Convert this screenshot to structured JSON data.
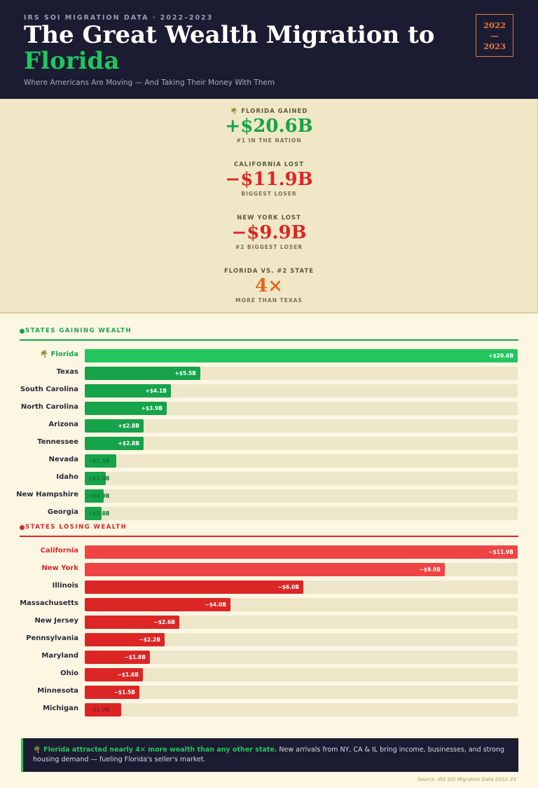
{
  "header": {
    "eyebrow": "IRS SOI MIGRATION DATA · 2022–2023",
    "title_line1": "The Great Wealth Migration to",
    "title_line2": "Florida",
    "subtitle": "Where Americans Are Moving — And Taking Their Money With Them",
    "year_top": "2022",
    "year_dash": "—",
    "year_bottom": "2023"
  },
  "stats": [
    {
      "label": "🌴 FLORIDA GAINED",
      "value": "+$20.6B",
      "sub": "#1 IN THE NATION",
      "tone": "green"
    },
    {
      "label": "CALIFORNIA LOST",
      "value": "−$11.9B",
      "sub": "BIGGEST LOSER",
      "tone": "red"
    },
    {
      "label": "NEW YORK LOST",
      "value": "−$9.9B",
      "sub": "#2 BIGGEST LOSER",
      "tone": "red"
    },
    {
      "label": "FLORIDA VS. #2 STATE",
      "value": "4×",
      "sub": "MORE THAN TEXAS",
      "tone": "orange"
    }
  ],
  "chart_data": [
    {
      "type": "bar",
      "title": "STATES GAINING WEALTH",
      "unit": "B USD",
      "categories": [
        "🌴 Florida",
        "Texas",
        "South Carolina",
        "North Carolina",
        "Arizona",
        "Tennessee",
        "Nevada",
        "Idaho",
        "New Hampshire",
        "Georgia"
      ],
      "values": [
        20.6,
        5.5,
        4.1,
        3.9,
        2.8,
        2.8,
        1.5,
        1.0,
        0.9,
        0.8
      ],
      "value_labels": [
        "+$20.6B",
        "+$5.5B",
        "+$4.1B",
        "+$3.9B",
        "+$2.8B",
        "+$2.8B",
        "+$1.5B",
        "+$1.0B",
        "+$0.9B",
        "+$0.8B"
      ],
      "highlight": [
        "🌴 Florida"
      ],
      "colors": {
        "highlight": "#22c55e",
        "bar": "#16a34a",
        "track": "#ede6c8",
        "accent": "#16a34a"
      }
    },
    {
      "type": "bar",
      "title": "STATES LOSING WEALTH",
      "unit": "B USD",
      "categories": [
        "California",
        "New York",
        "Illinois",
        "Massachusetts",
        "New Jersey",
        "Pennsylvania",
        "Maryland",
        "Ohio",
        "Minnesota",
        "Michigan"
      ],
      "values": [
        11.9,
        9.9,
        6.0,
        4.0,
        2.6,
        2.2,
        1.8,
        1.6,
        1.5,
        1.0
      ],
      "value_labels": [
        "−$11.9B",
        "−$9.9B",
        "−$6.0B",
        "−$4.0B",
        "−$2.6B",
        "−$2.2B",
        "−$1.8B",
        "−$1.6B",
        "−$1.5B",
        "−$1.0B"
      ],
      "highlight": [
        "California",
        "New York"
      ],
      "colors": {
        "highlight": "#ef4444",
        "bar": "#dc2626",
        "track": "#ede6c8",
        "accent": "#dc2626"
      }
    }
  ],
  "callout": {
    "strong": "🌴 Florida attracted nearly 4× more wealth than any other state.",
    "text": " New arrivals from NY, CA & IL bring income, businesses, and strong housing demand — fueling Florida's seller's market."
  },
  "source": "Source: IRS SOI Migration Data 2022–23"
}
